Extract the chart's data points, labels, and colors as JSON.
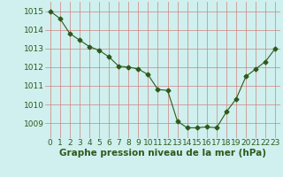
{
  "x": [
    0,
    1,
    2,
    3,
    4,
    5,
    6,
    7,
    8,
    9,
    10,
    11,
    12,
    13,
    14,
    15,
    16,
    17,
    18,
    19,
    20,
    21,
    22,
    23
  ],
  "y": [
    1015.0,
    1014.6,
    1013.8,
    1013.45,
    1013.1,
    1012.9,
    1012.55,
    1012.05,
    1012.0,
    1011.9,
    1011.6,
    1010.8,
    1010.75,
    1009.1,
    1008.75,
    1008.75,
    1008.8,
    1008.75,
    1009.6,
    1010.3,
    1011.5,
    1011.9,
    1012.3,
    1013.0
  ],
  "line_color": "#2d5a1b",
  "marker": "D",
  "marker_size": 2.5,
  "bg_color": "#cff0ee",
  "grid_color": "#d08080",
  "xlabel": "Graphe pression niveau de la mer (hPa)",
  "xlabel_fontsize": 7.5,
  "ylabel_ticks": [
    1009,
    1010,
    1011,
    1012,
    1013,
    1014,
    1015
  ],
  "ylim": [
    1008.2,
    1015.5
  ],
  "xlim": [
    -0.5,
    23.5
  ],
  "tick_fontsize": 6.5,
  "label_color": "#2d5a1b"
}
